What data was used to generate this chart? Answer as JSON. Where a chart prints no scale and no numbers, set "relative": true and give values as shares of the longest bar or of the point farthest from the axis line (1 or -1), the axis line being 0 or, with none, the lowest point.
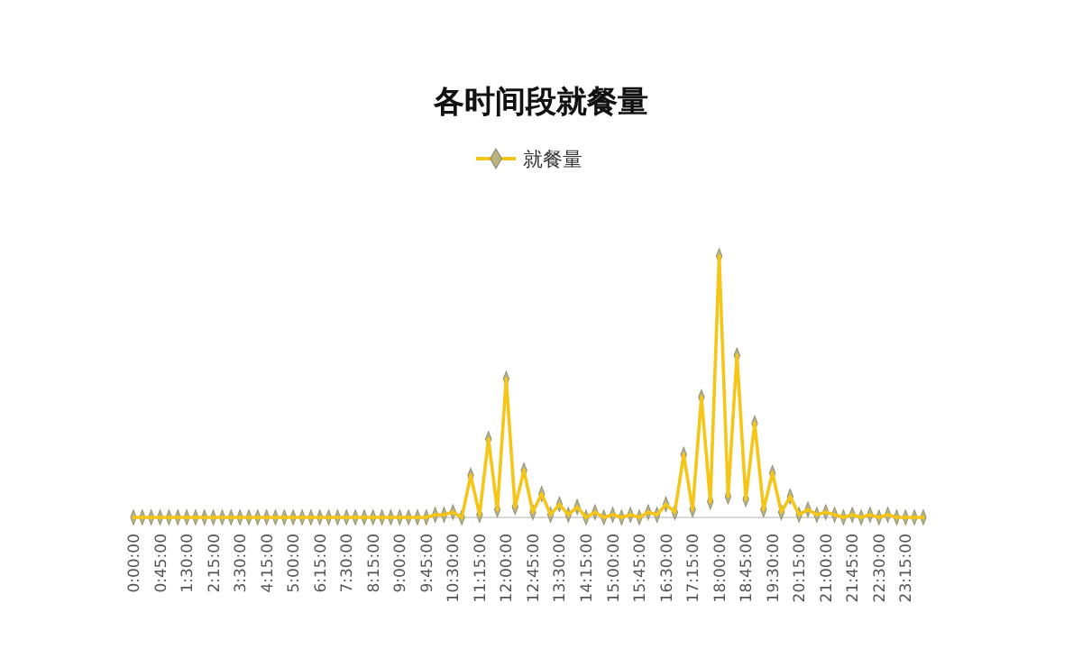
{
  "chart_data": {
    "type": "line",
    "title": "各时间段就餐量",
    "relative": true,
    "legend": "top",
    "marker": "diamond",
    "line_style": "solid",
    "categories": [
      "0:00:00",
      null,
      null,
      "0:45:00",
      null,
      null,
      "1:30:00",
      null,
      null,
      "2:15:00",
      null,
      null,
      "3:30:00",
      null,
      null,
      "4:15:00",
      null,
      null,
      "5:00:00",
      null,
      null,
      "6:15:00",
      null,
      null,
      "7:30:00",
      null,
      null,
      "8:15:00",
      null,
      null,
      "9:00:00",
      null,
      null,
      "9:45:00",
      null,
      null,
      "10:30:00",
      null,
      null,
      "11:15:00",
      null,
      null,
      "12:00:00",
      null,
      null,
      "12:45:00",
      null,
      null,
      "13:30:00",
      null,
      null,
      "14:15:00",
      null,
      null,
      "15:00:00",
      null,
      null,
      "15:45:00",
      null,
      null,
      "16:30:00",
      null,
      null,
      "17:15:00",
      null,
      null,
      "18:00:00",
      null,
      null,
      "18:45:00",
      null,
      null,
      "19:30:00",
      null,
      null,
      "20:15:00",
      null,
      null,
      "21:00:00",
      null,
      null,
      "21:45:00",
      null,
      null,
      "22:30:00",
      null,
      null,
      "23:15:00",
      null,
      null
    ],
    "series": [
      {
        "name": "就餐量",
        "color": "#f5c518",
        "values": [
          0,
          0,
          0,
          0,
          0,
          0,
          0,
          0,
          0,
          0,
          0,
          0,
          0,
          0,
          0,
          0,
          0,
          0,
          0,
          0,
          0,
          0,
          0,
          0,
          0,
          0,
          0,
          0,
          0,
          0,
          0,
          0,
          0,
          0,
          0.01,
          0.01,
          0.02,
          0,
          0.16,
          0.01,
          0.3,
          0.03,
          0.53,
          0.04,
          0.18,
          0.02,
          0.09,
          0.01,
          0.05,
          0.01,
          0.04,
          0,
          0.02,
          0,
          0.01,
          0,
          0.01,
          0,
          0.02,
          0.01,
          0.05,
          0.02,
          0.24,
          0.03,
          0.46,
          0.06,
          1,
          0.08,
          0.62,
          0.07,
          0.36,
          0.03,
          0.17,
          0.02,
          0.08,
          0.01,
          0.03,
          0.01,
          0.02,
          0.01,
          0,
          0.01,
          0,
          0.01,
          0,
          0.01,
          0,
          0,
          0,
          0
        ]
      }
    ]
  }
}
